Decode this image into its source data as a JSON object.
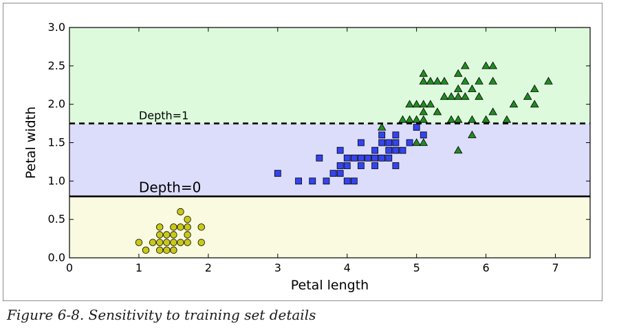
{
  "caption": "Figure 6-8. Sensitivity to training set details",
  "chart_data": {
    "type": "scatter",
    "title": "",
    "xlabel": "Petal length",
    "ylabel": "Petal width",
    "xlim": [
      0,
      7.5
    ],
    "ylim": [
      0,
      3.0
    ],
    "xticks": [
      "0",
      "1",
      "2",
      "3",
      "4",
      "5",
      "6",
      "7"
    ],
    "yticks": [
      "0.0",
      "0.5",
      "1.0",
      "1.5",
      "2.0",
      "2.5",
      "3.0"
    ],
    "grid": false,
    "regions": [
      {
        "name": "class-0-region",
        "y_from": 0.0,
        "y_to": 0.8,
        "color": "#fafae0"
      },
      {
        "name": "class-1-region",
        "y_from": 0.8,
        "y_to": 1.75,
        "color": "#dcdcfb"
      },
      {
        "name": "class-2-region",
        "y_from": 1.75,
        "y_to": 3.0,
        "color": "#ddfbdc"
      }
    ],
    "boundaries": [
      {
        "y": 0.8,
        "label": "Depth=0",
        "style": "solid"
      },
      {
        "y": 1.75,
        "label": "Depth=1",
        "style": "dashed"
      }
    ],
    "series": [
      {
        "marker": "circle",
        "color": "#c8c81a",
        "points": [
          [
            1.0,
            0.2
          ],
          [
            1.1,
            0.1
          ],
          [
            1.2,
            0.2
          ],
          [
            1.3,
            0.4
          ],
          [
            1.3,
            0.3
          ],
          [
            1.3,
            0.2
          ],
          [
            1.3,
            0.1
          ],
          [
            1.4,
            0.3
          ],
          [
            1.4,
            0.2
          ],
          [
            1.4,
            0.1
          ],
          [
            1.5,
            0.4
          ],
          [
            1.5,
            0.3
          ],
          [
            1.5,
            0.2
          ],
          [
            1.5,
            0.1
          ],
          [
            1.6,
            0.6
          ],
          [
            1.6,
            0.4
          ],
          [
            1.6,
            0.2
          ],
          [
            1.7,
            0.5
          ],
          [
            1.7,
            0.4
          ],
          [
            1.7,
            0.3
          ],
          [
            1.7,
            0.2
          ],
          [
            1.9,
            0.4
          ],
          [
            1.9,
            0.2
          ]
        ]
      },
      {
        "marker": "square",
        "color": "#3344ee",
        "points": [
          [
            3.0,
            1.1
          ],
          [
            3.3,
            1.0
          ],
          [
            3.5,
            1.0
          ],
          [
            3.6,
            1.3
          ],
          [
            3.7,
            1.0
          ],
          [
            3.8,
            1.1
          ],
          [
            3.9,
            1.1
          ],
          [
            3.9,
            1.2
          ],
          [
            3.9,
            1.4
          ],
          [
            4.0,
            1.0
          ],
          [
            4.0,
            1.2
          ],
          [
            4.0,
            1.3
          ],
          [
            4.1,
            1.0
          ],
          [
            4.1,
            1.3
          ],
          [
            4.2,
            1.2
          ],
          [
            4.2,
            1.3
          ],
          [
            4.2,
            1.5
          ],
          [
            4.3,
            1.3
          ],
          [
            4.4,
            1.2
          ],
          [
            4.4,
            1.3
          ],
          [
            4.4,
            1.4
          ],
          [
            4.5,
            1.3
          ],
          [
            4.5,
            1.5
          ],
          [
            4.5,
            1.6
          ],
          [
            4.6,
            1.3
          ],
          [
            4.6,
            1.4
          ],
          [
            4.6,
            1.5
          ],
          [
            4.7,
            1.2
          ],
          [
            4.7,
            1.4
          ],
          [
            4.7,
            1.5
          ],
          [
            4.7,
            1.6
          ],
          [
            4.8,
            1.4
          ],
          [
            4.9,
            1.5
          ],
          [
            5.0,
            1.7
          ],
          [
            5.1,
            1.6
          ]
        ]
      },
      {
        "marker": "triangle",
        "color": "#228b22",
        "points": [
          [
            4.5,
            1.7
          ],
          [
            4.8,
            1.8
          ],
          [
            4.9,
            1.8
          ],
          [
            4.9,
            2.0
          ],
          [
            5.0,
            1.5
          ],
          [
            5.0,
            1.8
          ],
          [
            5.0,
            2.0
          ],
          [
            5.1,
            1.5
          ],
          [
            5.1,
            1.8
          ],
          [
            5.1,
            1.9
          ],
          [
            5.1,
            2.0
          ],
          [
            5.1,
            2.3
          ],
          [
            5.1,
            2.4
          ],
          [
            5.2,
            2.0
          ],
          [
            5.2,
            2.3
          ],
          [
            5.3,
            1.9
          ],
          [
            5.3,
            2.3
          ],
          [
            5.4,
            2.1
          ],
          [
            5.4,
            2.3
          ],
          [
            5.5,
            1.8
          ],
          [
            5.5,
            2.1
          ],
          [
            5.6,
            1.4
          ],
          [
            5.6,
            1.8
          ],
          [
            5.6,
            2.1
          ],
          [
            5.6,
            2.2
          ],
          [
            5.6,
            2.4
          ],
          [
            5.7,
            2.1
          ],
          [
            5.7,
            2.3
          ],
          [
            5.7,
            2.5
          ],
          [
            5.8,
            1.6
          ],
          [
            5.8,
            1.8
          ],
          [
            5.8,
            2.2
          ],
          [
            5.9,
            2.1
          ],
          [
            5.9,
            2.3
          ],
          [
            6.0,
            1.8
          ],
          [
            6.0,
            2.5
          ],
          [
            6.1,
            1.9
          ],
          [
            6.1,
            2.3
          ],
          [
            6.1,
            2.5
          ],
          [
            6.3,
            1.8
          ],
          [
            6.4,
            2.0
          ],
          [
            6.6,
            2.1
          ],
          [
            6.7,
            2.0
          ],
          [
            6.7,
            2.2
          ],
          [
            6.9,
            2.3
          ]
        ]
      }
    ]
  }
}
